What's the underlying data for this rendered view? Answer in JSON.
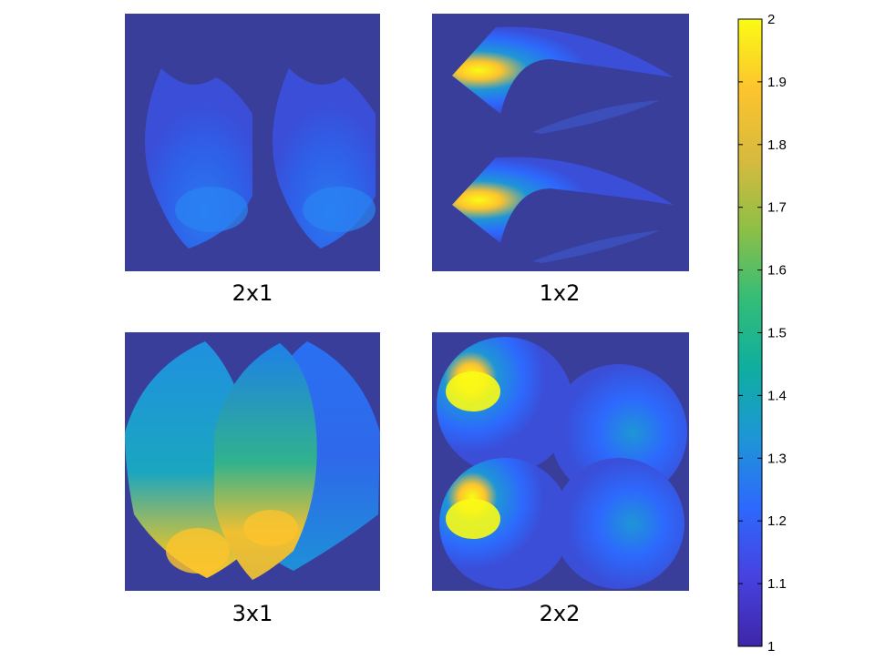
{
  "colors": {
    "background": "#3a3e9b",
    "colormap": [
      "#3e26a8",
      "#4742e0",
      "#2d69fd",
      "#1e96d6",
      "#0fae9f",
      "#35bd77",
      "#8fbf46",
      "#d8ba3e",
      "#fdc42d",
      "#f9fb15"
    ]
  },
  "panels": [
    {
      "label": "2x1",
      "layout": "two lenses side by side",
      "rows": 1,
      "cols": 2
    },
    {
      "label": "1x2",
      "layout": "two crescents stacked",
      "rows": 2,
      "cols": 1
    },
    {
      "label": "3x1",
      "layout": "three overlapping lenses",
      "rows": 1,
      "cols": 3
    },
    {
      "label": "2x2",
      "layout": "four overlapping circles",
      "rows": 2,
      "cols": 2
    }
  ],
  "chart_data": {
    "type": "heatmap",
    "colorbar": {
      "min": 1,
      "max": 2,
      "ticks": [
        1,
        1.1,
        1.2,
        1.3,
        1.4,
        1.5,
        1.6,
        1.7,
        1.8,
        1.9,
        2
      ],
      "tick_labels": [
        "1",
        "1.1",
        "1.2",
        "1.3",
        "1.4",
        "1.5",
        "1.6",
        "1.7",
        "1.8",
        "1.9",
        "2"
      ],
      "colormap": "parula",
      "placement": "right"
    },
    "panels": [
      {
        "label": "2x1",
        "background_value": 1.0,
        "region_value_range": [
          1.05,
          1.25
        ],
        "peak_value": 1.25
      },
      {
        "label": "1x2",
        "background_value": 1.0,
        "region_value_range": [
          1.0,
          1.95
        ],
        "peak_value": 1.95
      },
      {
        "label": "3x1",
        "background_value": 1.0,
        "region_value_range": [
          1.2,
          1.85
        ],
        "peak_value": 1.85
      },
      {
        "label": "2x2",
        "background_value": 1.0,
        "region_value_range": [
          1.05,
          2.0
        ],
        "peak_value": 2.0
      }
    ]
  }
}
